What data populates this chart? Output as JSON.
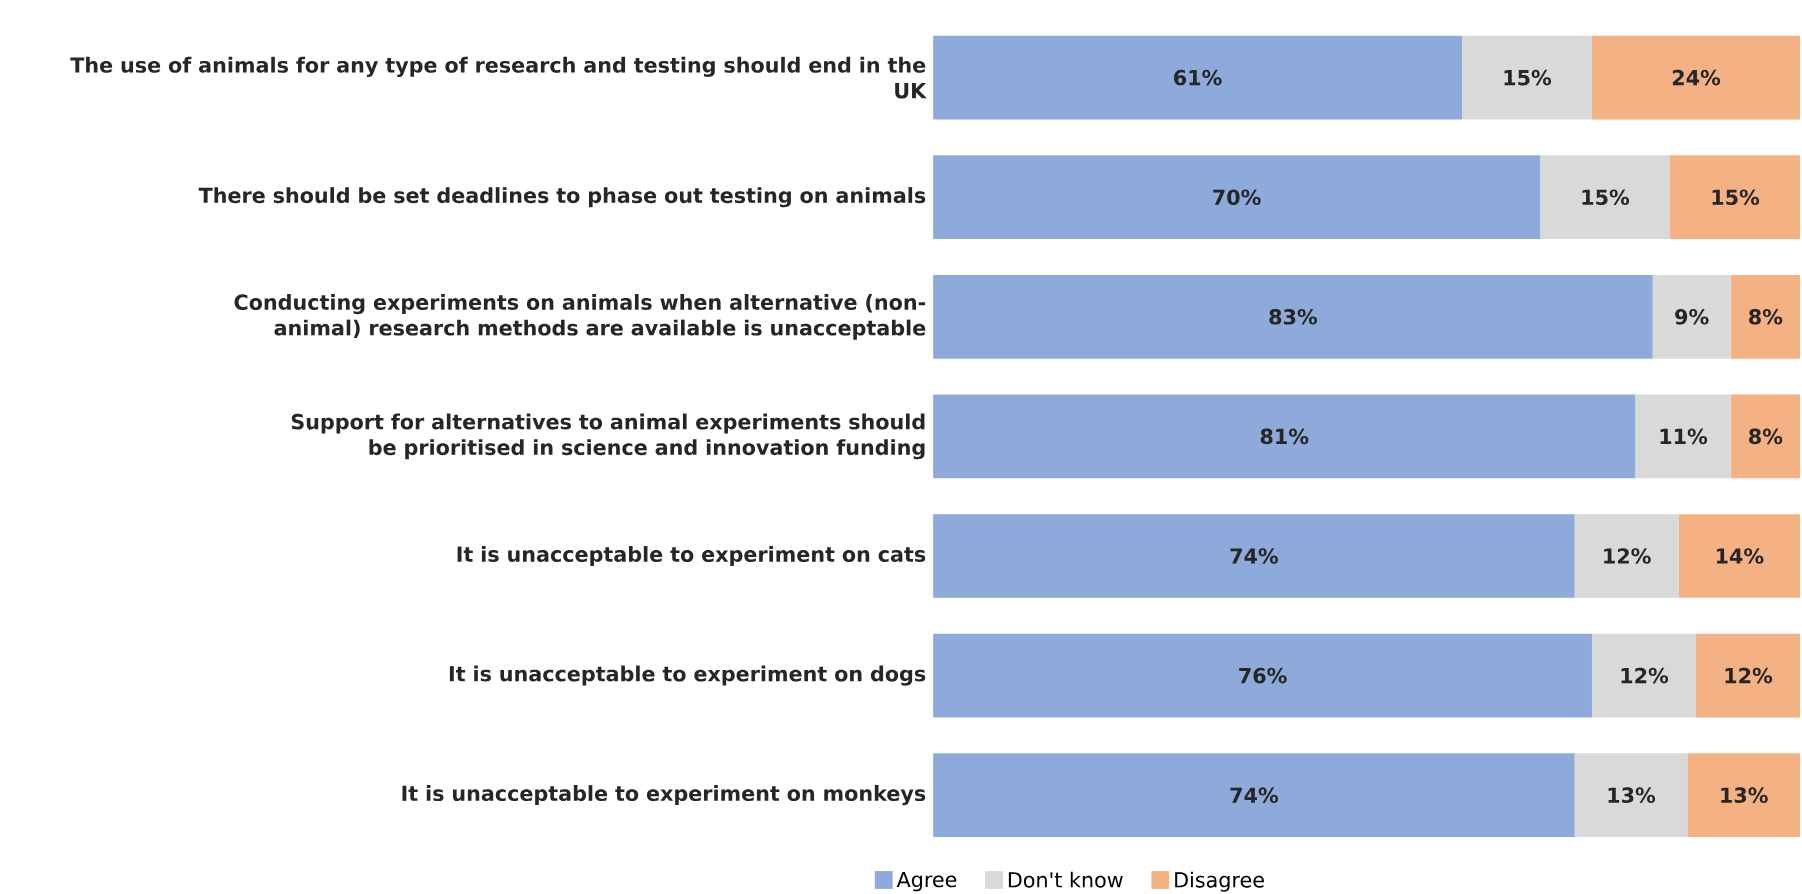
{
  "chart_data": {
    "type": "bar",
    "orientation": "horizontal",
    "stacked": true,
    "legend": "bottom",
    "tick_labels": "y",
    "categories": [
      "The use of animals for any type of research and testing should end in the UK",
      "There should be set deadlines to phase out testing on animals",
      "Conducting experiments on animals when alternative (non-animal) research methods are available is unacceptable",
      "Support for alternatives to animal experiments should be prioritised in science and innovation funding",
      "It is unacceptable to experiment on cats",
      "It is unacceptable to experiment on dogs",
      "It is unacceptable to experiment on monkeys"
    ],
    "series": [
      {
        "name": "Agree",
        "color": "#8eaadb",
        "values": [
          61,
          70,
          83,
          81,
          74,
          76,
          74
        ],
        "value_labels": [
          "61%",
          "70%",
          "83%",
          "81%",
          "74%",
          "76%",
          "74%"
        ]
      },
      {
        "name": "Don't know",
        "color": "#d9d9d9",
        "values": [
          15,
          15,
          9,
          11,
          12,
          12,
          13
        ],
        "value_labels": [
          "15%",
          "15%",
          "9%",
          "11%",
          "12%",
          "12%",
          "13%"
        ]
      },
      {
        "name": "Disagree",
        "color": "#f4b183",
        "values": [
          24,
          15,
          8,
          8,
          14,
          12,
          13
        ],
        "value_labels": [
          "24%",
          "15%",
          "8%",
          "8%",
          "14%",
          "12%",
          "13%"
        ]
      }
    ]
  }
}
